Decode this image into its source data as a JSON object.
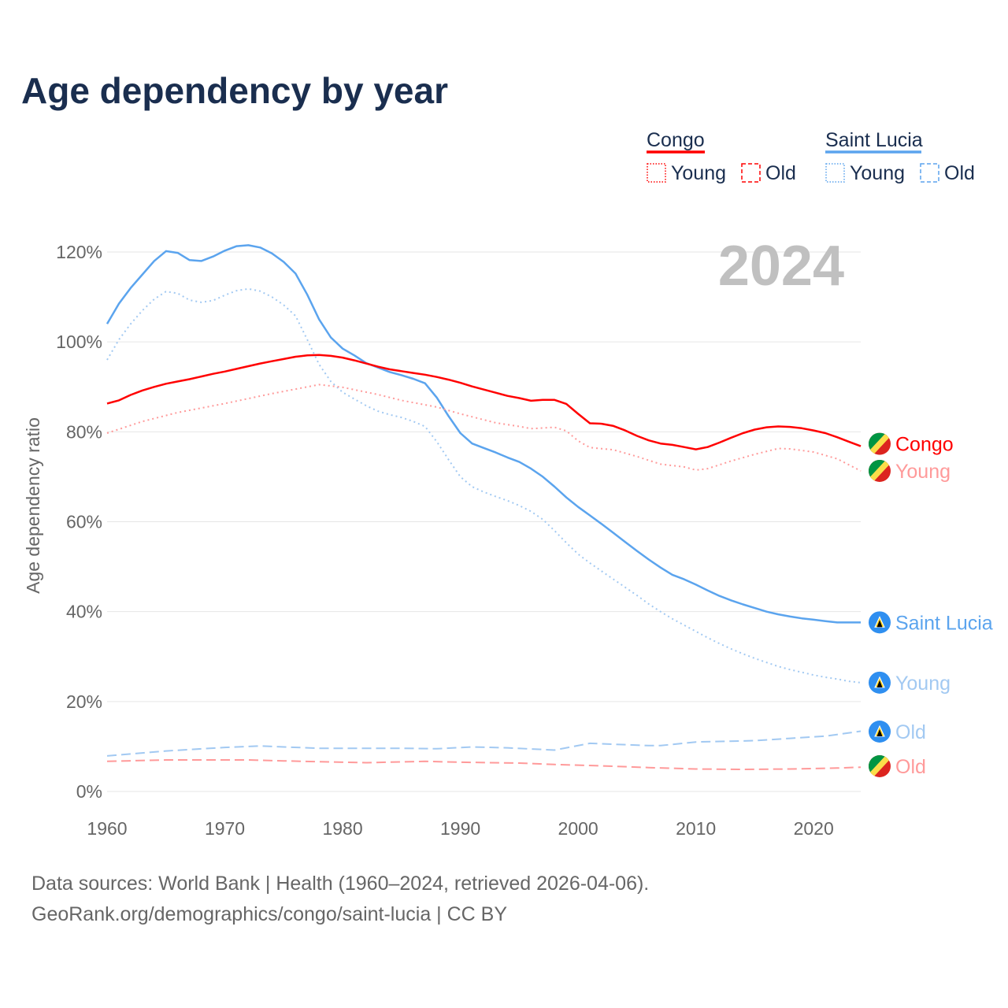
{
  "colors": {
    "congo": "#ff0000",
    "congo_light": "#ff9a9a",
    "lucia": "#5ba4ee",
    "lucia_light": "#a2c9f2",
    "grid": "#e6e6e6",
    "year": "#c0c0c0"
  },
  "chart_data": {
    "type": "line",
    "title": "Age dependency by year",
    "ylabel": "Age dependency ratio",
    "xlabel": "",
    "xlim": [
      1960,
      2024
    ],
    "ylim": [
      0,
      120
    ],
    "x_ticks": [
      "1960",
      "1970",
      "1980",
      "1990",
      "2000",
      "2010",
      "2020"
    ],
    "y_ticks": [
      "0%",
      "20%",
      "40%",
      "60%",
      "80%",
      "100%",
      "120%"
    ],
    "grid": true,
    "year_label": "2024",
    "legend": {
      "placement": "top-right",
      "groups": [
        {
          "name": "Congo",
          "items": [
            "Young",
            "Old"
          ]
        },
        {
          "name": "Saint Lucia",
          "items": [
            "Young",
            "Old"
          ]
        }
      ]
    },
    "series": [
      {
        "name": "Saint Lucia",
        "label": "Saint Lucia",
        "country": "lucia",
        "style": "solid",
        "color": "#5ba4ee",
        "points": [
          [
            1960,
            104
          ],
          [
            1961,
            108.5
          ],
          [
            1962,
            112
          ],
          [
            1963,
            115
          ],
          [
            1964,
            118
          ],
          [
            1965,
            120.2
          ],
          [
            1966,
            119.8
          ],
          [
            1967,
            118.2
          ],
          [
            1968,
            118
          ],
          [
            1969,
            119
          ],
          [
            1970,
            120.3
          ],
          [
            1971,
            121.3
          ],
          [
            1972,
            121.5
          ],
          [
            1973,
            121
          ],
          [
            1974,
            119.7
          ],
          [
            1975,
            117.8
          ],
          [
            1976,
            115.2
          ],
          [
            1977,
            110.5
          ],
          [
            1978,
            105
          ],
          [
            1979,
            101
          ],
          [
            1980,
            98.5
          ],
          [
            1981,
            97
          ],
          [
            1982,
            95.3
          ],
          [
            1983,
            94.3
          ],
          [
            1984,
            93.3
          ],
          [
            1985,
            92.6
          ],
          [
            1986,
            91.8
          ],
          [
            1987,
            90.8
          ],
          [
            1988,
            87.6
          ],
          [
            1989,
            83.5
          ],
          [
            1990,
            79.7
          ],
          [
            1991,
            77.4
          ],
          [
            1992,
            76.4
          ],
          [
            1993,
            75.4
          ],
          [
            1994,
            74.3
          ],
          [
            1995,
            73.3
          ],
          [
            1996,
            71.8
          ],
          [
            1997,
            70
          ],
          [
            1998,
            67.8
          ],
          [
            1999,
            65.4
          ],
          [
            2000,
            63.3
          ],
          [
            2001,
            61.4
          ],
          [
            2002,
            59.5
          ],
          [
            2003,
            57.5
          ],
          [
            2004,
            55.5
          ],
          [
            2005,
            53.5
          ],
          [
            2006,
            51.6
          ],
          [
            2007,
            49.8
          ],
          [
            2008,
            48.2
          ],
          [
            2009,
            47.2
          ],
          [
            2010,
            46
          ],
          [
            2011,
            44.7
          ],
          [
            2012,
            43.5
          ],
          [
            2013,
            42.5
          ],
          [
            2014,
            41.6
          ],
          [
            2015,
            40.8
          ],
          [
            2016,
            40
          ],
          [
            2017,
            39.4
          ],
          [
            2018,
            38.9
          ],
          [
            2019,
            38.5
          ],
          [
            2020,
            38.2
          ],
          [
            2021,
            37.9
          ],
          [
            2022,
            37.6
          ],
          [
            2023,
            37.6
          ],
          [
            2024,
            37.6
          ]
        ]
      },
      {
        "name": "Saint Lucia Young",
        "label": "Young",
        "country": "lucia",
        "style": "dotted",
        "color": "#a2c9f2",
        "points": [
          [
            1960,
            96
          ],
          [
            1961,
            100.5
          ],
          [
            1962,
            104
          ],
          [
            1963,
            107
          ],
          [
            1964,
            109.5
          ],
          [
            1965,
            111.2
          ],
          [
            1966,
            110.8
          ],
          [
            1967,
            109.3
          ],
          [
            1968,
            108.8
          ],
          [
            1969,
            109.2
          ],
          [
            1970,
            110.4
          ],
          [
            1971,
            111.4
          ],
          [
            1972,
            111.8
          ],
          [
            1973,
            111.3
          ],
          [
            1974,
            110
          ],
          [
            1975,
            108.2
          ],
          [
            1976,
            105.8
          ],
          [
            1977,
            100.5
          ],
          [
            1978,
            95
          ],
          [
            1979,
            91.2
          ],
          [
            1980,
            88.8
          ],
          [
            1981,
            87.3
          ],
          [
            1982,
            85.8
          ],
          [
            1983,
            84.6
          ],
          [
            1984,
            83.8
          ],
          [
            1985,
            83.2
          ],
          [
            1986,
            82.3
          ],
          [
            1987,
            81.2
          ],
          [
            1988,
            77.8
          ],
          [
            1989,
            73.8
          ],
          [
            1990,
            70
          ],
          [
            1991,
            67.8
          ],
          [
            1992,
            66.6
          ],
          [
            1993,
            65.6
          ],
          [
            1994,
            64.7
          ],
          [
            1995,
            63.6
          ],
          [
            1996,
            62.3
          ],
          [
            1997,
            60.5
          ],
          [
            1998,
            58
          ],
          [
            1999,
            55.3
          ],
          [
            2000,
            52.8
          ],
          [
            2001,
            50.8
          ],
          [
            2002,
            49
          ],
          [
            2003,
            47.2
          ],
          [
            2004,
            45.4
          ],
          [
            2005,
            43.6
          ],
          [
            2006,
            41.7
          ],
          [
            2007,
            40
          ],
          [
            2008,
            38.4
          ],
          [
            2009,
            37
          ],
          [
            2010,
            35.6
          ],
          [
            2011,
            34.2
          ],
          [
            2012,
            32.9
          ],
          [
            2013,
            31.7
          ],
          [
            2014,
            30.6
          ],
          [
            2015,
            29.6
          ],
          [
            2016,
            28.7
          ],
          [
            2017,
            27.8
          ],
          [
            2018,
            27.1
          ],
          [
            2019,
            26.5
          ],
          [
            2020,
            25.9
          ],
          [
            2021,
            25.4
          ],
          [
            2022,
            25
          ],
          [
            2023,
            24.5
          ],
          [
            2024,
            24.2
          ]
        ]
      },
      {
        "name": "Saint Lucia Old",
        "label": "Old",
        "country": "lucia",
        "style": "dashed",
        "color": "#a2c9f2",
        "points": [
          [
            1960,
            7.9
          ],
          [
            1965,
            9
          ],
          [
            1970,
            9.8
          ],
          [
            1973,
            10.1
          ],
          [
            1978,
            9.6
          ],
          [
            1985,
            9.6
          ],
          [
            1988,
            9.5
          ],
          [
            1991,
            9.9
          ],
          [
            1994,
            9.7
          ],
          [
            1998,
            9.2
          ],
          [
            2001,
            10.7
          ],
          [
            2006,
            10.2
          ],
          [
            2007,
            10.2
          ],
          [
            2010,
            11
          ],
          [
            2015,
            11.3
          ],
          [
            2018,
            11.8
          ],
          [
            2021,
            12.3
          ],
          [
            2024,
            13.4
          ]
        ]
      },
      {
        "name": "Congo",
        "label": "Congo",
        "country": "congo",
        "style": "solid",
        "color": "#ff0000",
        "points": [
          [
            1960,
            86.3
          ],
          [
            1961,
            87
          ],
          [
            1962,
            88.2
          ],
          [
            1963,
            89.2
          ],
          [
            1964,
            90
          ],
          [
            1965,
            90.7
          ],
          [
            1966,
            91.2
          ],
          [
            1967,
            91.7
          ],
          [
            1968,
            92.3
          ],
          [
            1969,
            92.9
          ],
          [
            1970,
            93.4
          ],
          [
            1971,
            94
          ],
          [
            1972,
            94.6
          ],
          [
            1973,
            95.2
          ],
          [
            1974,
            95.7
          ],
          [
            1975,
            96.2
          ],
          [
            1976,
            96.7
          ],
          [
            1977,
            97
          ],
          [
            1978,
            97.1
          ],
          [
            1979,
            96.9
          ],
          [
            1980,
            96.5
          ],
          [
            1981,
            95.9
          ],
          [
            1982,
            95.2
          ],
          [
            1983,
            94.5
          ],
          [
            1984,
            93.9
          ],
          [
            1985,
            93.5
          ],
          [
            1986,
            93.1
          ],
          [
            1987,
            92.7
          ],
          [
            1988,
            92.2
          ],
          [
            1989,
            91.6
          ],
          [
            1990,
            90.9
          ],
          [
            1991,
            90.1
          ],
          [
            1992,
            89.4
          ],
          [
            1993,
            88.7
          ],
          [
            1994,
            88
          ],
          [
            1995,
            87.5
          ],
          [
            1996,
            86.9
          ],
          [
            1997,
            87.1
          ],
          [
            1998,
            87.1
          ],
          [
            1999,
            86.2
          ],
          [
            2000,
            84
          ],
          [
            2001,
            81.9
          ],
          [
            2002,
            81.8
          ],
          [
            2003,
            81.3
          ],
          [
            2004,
            80.3
          ],
          [
            2005,
            79.1
          ],
          [
            2006,
            78.1
          ],
          [
            2007,
            77.4
          ],
          [
            2008,
            77.1
          ],
          [
            2009,
            76.6
          ],
          [
            2010,
            76.1
          ],
          [
            2011,
            76.6
          ],
          [
            2012,
            77.6
          ],
          [
            2013,
            78.7
          ],
          [
            2014,
            79.7
          ],
          [
            2015,
            80.5
          ],
          [
            2016,
            81
          ],
          [
            2017,
            81.2
          ],
          [
            2018,
            81.1
          ],
          [
            2019,
            80.8
          ],
          [
            2020,
            80.3
          ],
          [
            2021,
            79.7
          ],
          [
            2022,
            78.8
          ],
          [
            2023,
            77.8
          ],
          [
            2024,
            76.8
          ]
        ]
      },
      {
        "name": "Congo Young",
        "label": "Young",
        "country": "congo",
        "style": "dotted",
        "color": "#ff9a9a",
        "points": [
          [
            1960,
            79.7
          ],
          [
            1963,
            82.3
          ],
          [
            1966,
            84.3
          ],
          [
            1970,
            86.3
          ],
          [
            1974,
            88.5
          ],
          [
            1978,
            90.5
          ],
          [
            1980,
            89.9
          ],
          [
            1983,
            88.3
          ],
          [
            1985,
            87
          ],
          [
            1988,
            85.5
          ],
          [
            1990,
            84
          ],
          [
            1993,
            82
          ],
          [
            1995,
            81.2
          ],
          [
            1996,
            80.7
          ],
          [
            1998,
            81
          ],
          [
            1999,
            80.2
          ],
          [
            2000,
            78
          ],
          [
            2001,
            76.5
          ],
          [
            2003,
            76
          ],
          [
            2005,
            74.5
          ],
          [
            2007,
            72.8
          ],
          [
            2009,
            72.2
          ],
          [
            2010,
            71.5
          ],
          [
            2011,
            71.8
          ],
          [
            2013,
            73.5
          ],
          [
            2015,
            75
          ],
          [
            2017,
            76.3
          ],
          [
            2018,
            76.2
          ],
          [
            2020,
            75.5
          ],
          [
            2022,
            74
          ],
          [
            2024,
            71.3
          ]
        ]
      },
      {
        "name": "Congo Old",
        "label": "Old",
        "country": "congo",
        "style": "dashed",
        "color": "#ff9a9a",
        "points": [
          [
            1960,
            6.7
          ],
          [
            1965,
            7
          ],
          [
            1972,
            7
          ],
          [
            1975,
            6.8
          ],
          [
            1980,
            6.5
          ],
          [
            1982,
            6.4
          ],
          [
            1987,
            6.7
          ],
          [
            1990,
            6.5
          ],
          [
            1995,
            6.3
          ],
          [
            1998,
            6
          ],
          [
            2002,
            5.7
          ],
          [
            2006,
            5.3
          ],
          [
            2010,
            5
          ],
          [
            2014,
            4.9
          ],
          [
            2018,
            5
          ],
          [
            2022,
            5.2
          ],
          [
            2024,
            5.4
          ]
        ]
      }
    ]
  },
  "footer": {
    "line1": "Data sources: World Bank | Health (1960–2024, retrieved 2026-04-06).",
    "line2": "GeoRank.org/demographics/congo/saint-lucia | CC BY"
  }
}
